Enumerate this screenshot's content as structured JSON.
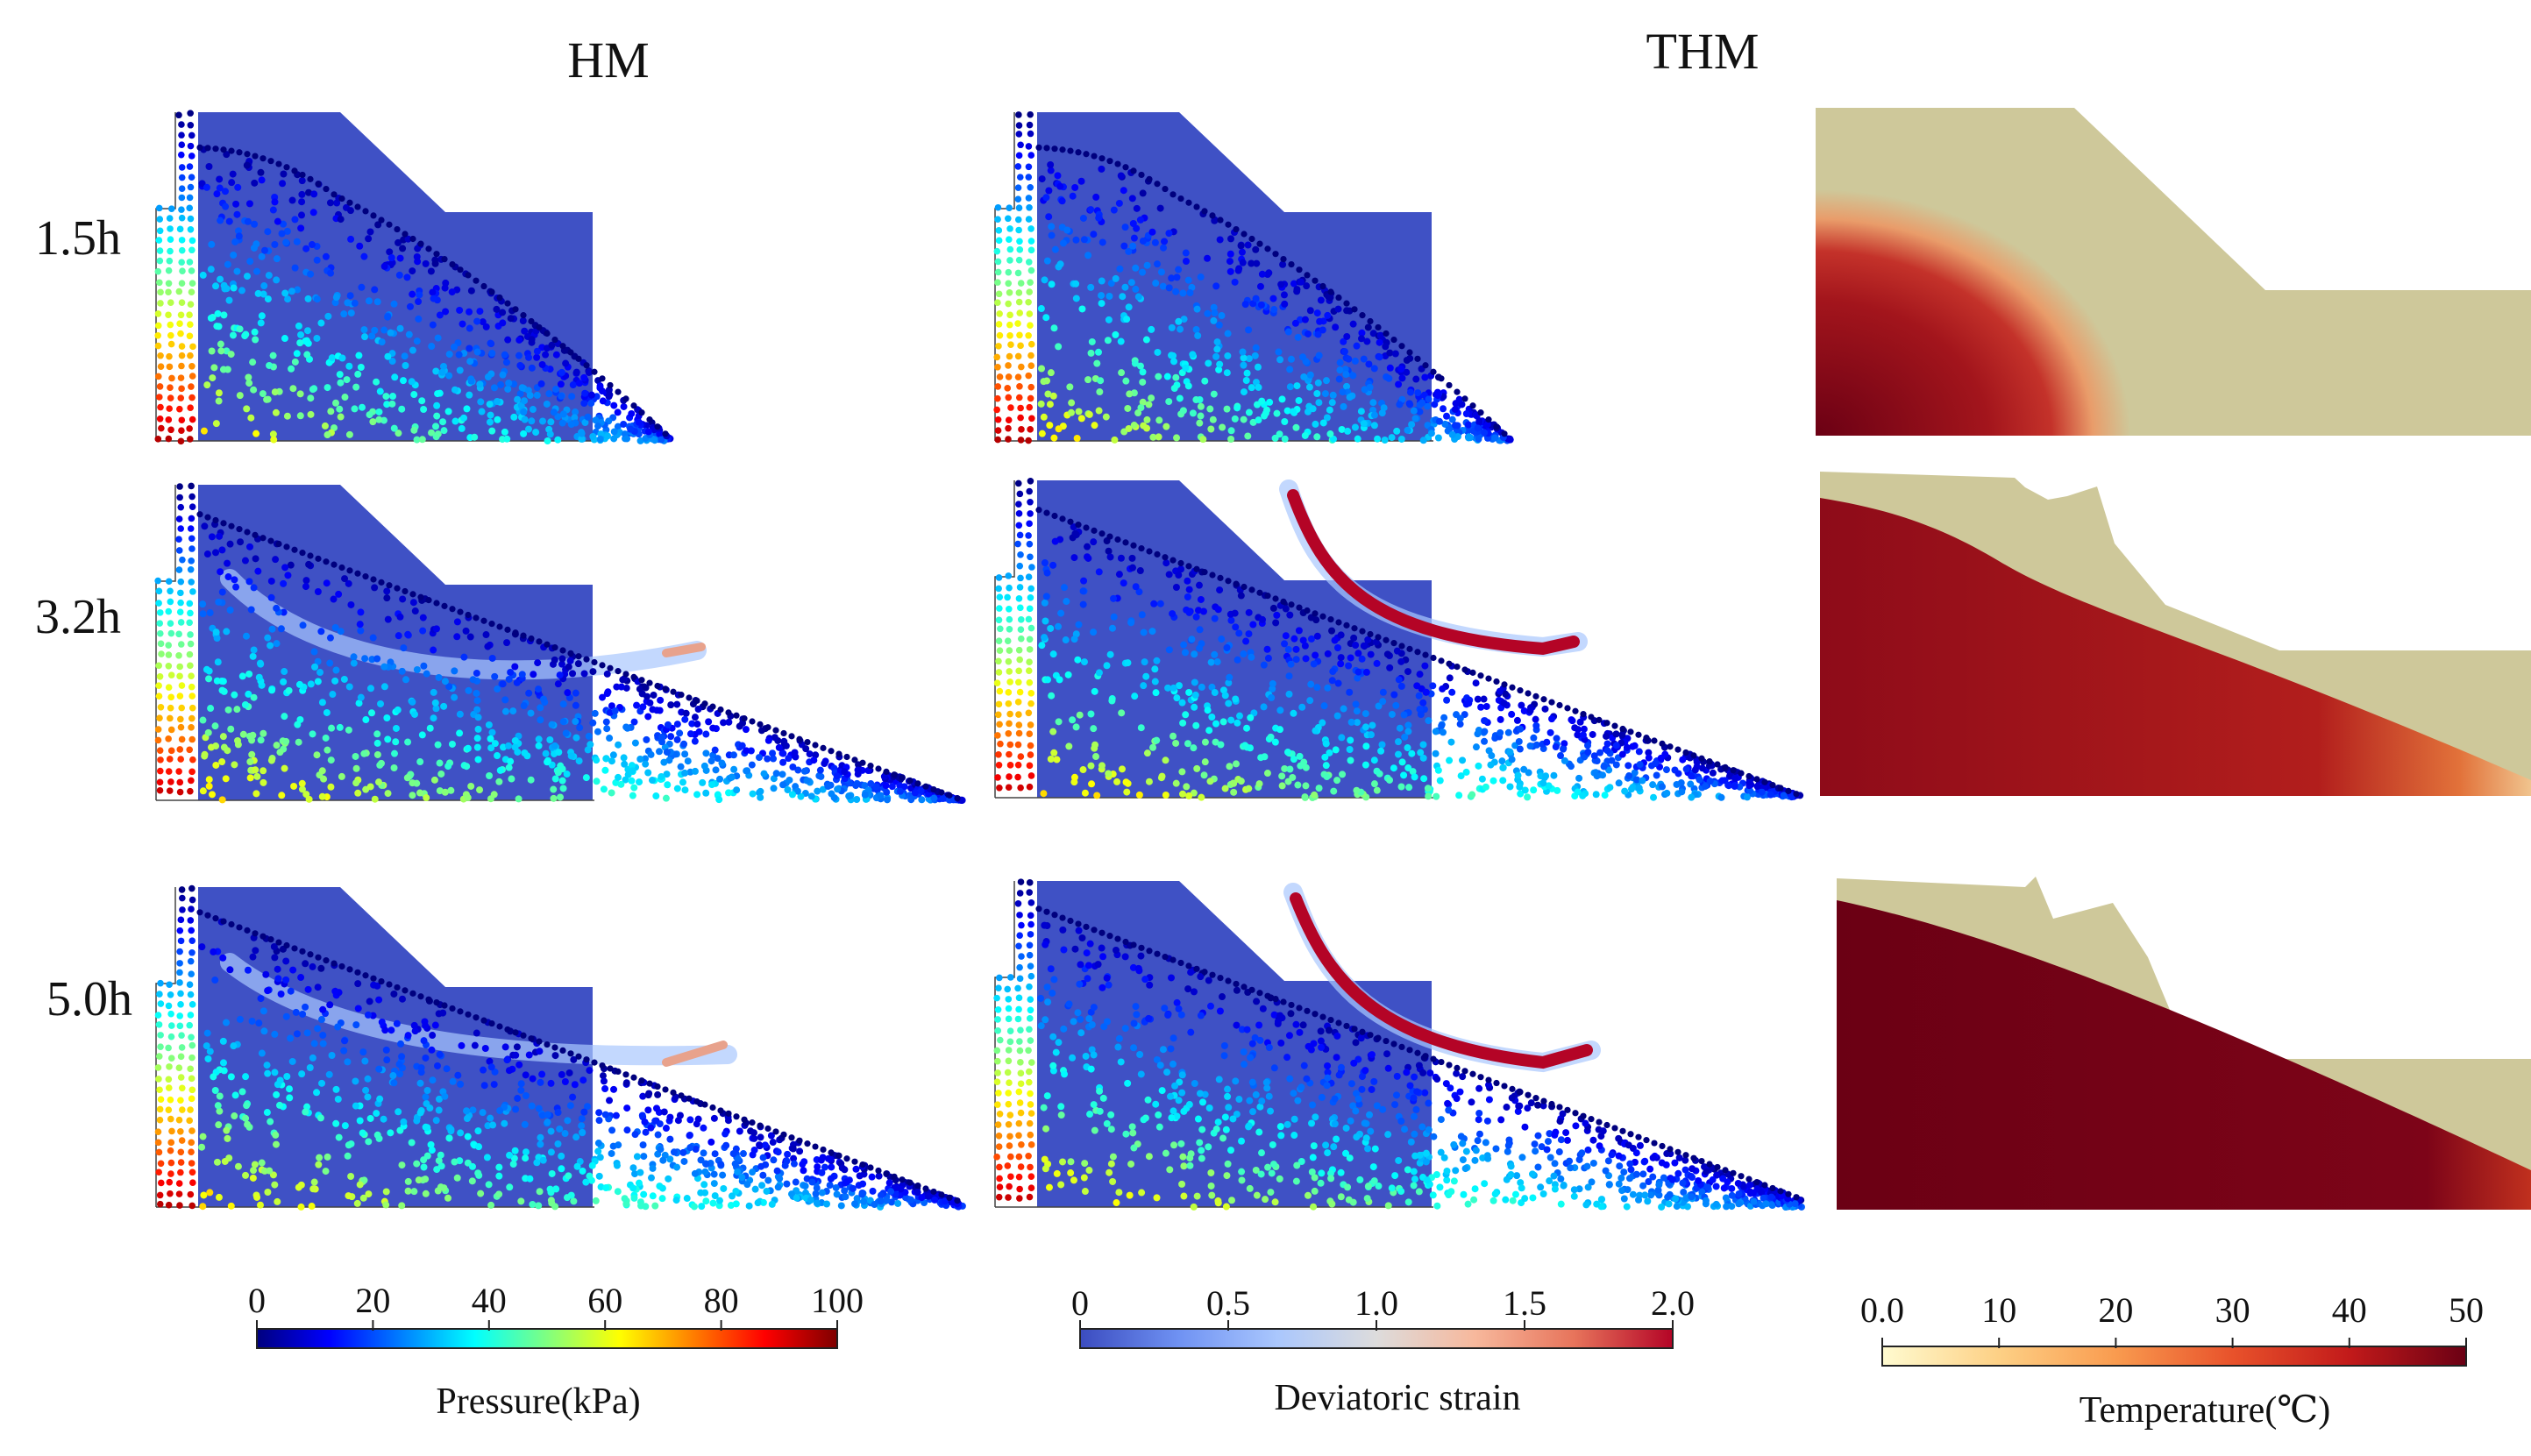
{
  "column_headers": {
    "hm": "HM",
    "thm": "THM"
  },
  "time_labels": [
    "1.5h",
    "3.2h",
    "5.0h"
  ],
  "colorbars": {
    "pressure": {
      "title": "Pressure(kPa)",
      "ticks": [
        "0",
        "20",
        "40",
        "60",
        "80",
        "100"
      ],
      "colors": [
        "#00007f",
        "#0000ff",
        "#0080ff",
        "#00ffff",
        "#80ff80",
        "#ffff00",
        "#ff8000",
        "#ff0000",
        "#7f0000"
      ]
    },
    "strain": {
      "title": "Deviatoric strain",
      "ticks": [
        "0",
        "0.5",
        "1.0",
        "1.5",
        "2.0"
      ],
      "colors": [
        "#3b4cc0",
        "#6f92f3",
        "#aac7fd",
        "#dddcdc",
        "#f7b89c",
        "#e7745b",
        "#b40426"
      ]
    },
    "temperature": {
      "title": "Temperature(℃)",
      "ticks": [
        "0.0",
        "10",
        "20",
        "30",
        "40",
        "50"
      ],
      "colors": [
        "#fffbd0",
        "#fdd085",
        "#f99b4f",
        "#e8522b",
        "#c21a1a",
        "#6b0014"
      ]
    }
  },
  "colors": {
    "slope_body": "#3f51c5",
    "sand_surface": "#cec89a",
    "heated_soil": "#a3151c"
  }
}
